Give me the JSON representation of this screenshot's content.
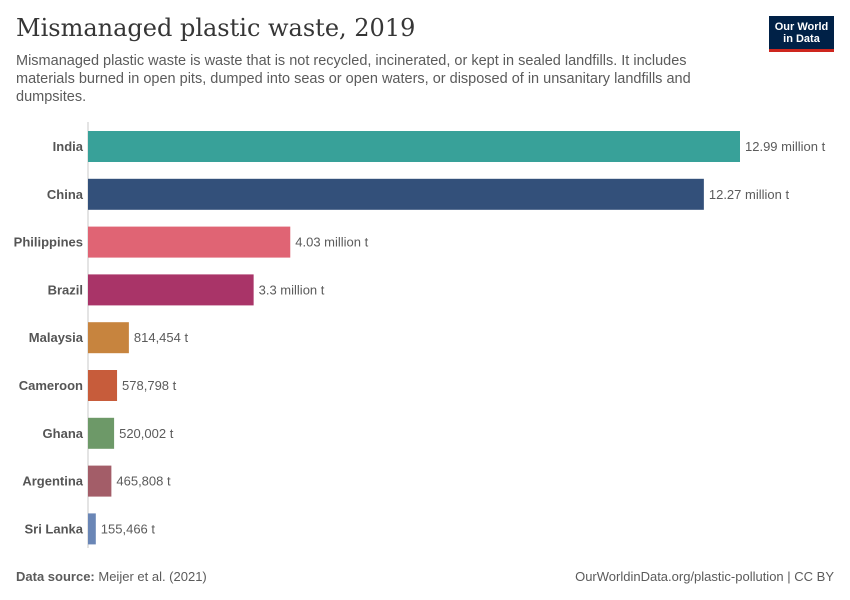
{
  "header": {
    "title": "Mismanaged plastic waste, 2019",
    "subtitle": "Mismanaged plastic waste is waste that is not recycled, incinerated, or kept in sealed landfills. It includes materials burned in open pits, dumped into seas or open waters, or disposed of in unsanitary landfills and dumpsites.",
    "logo_line1": "Our World",
    "logo_line2": "in Data"
  },
  "footer": {
    "source_label": "Data source:",
    "source_text": "Meijer et al. (2021)",
    "link_text": "OurWorldinData.org/plastic-pollution | CC BY"
  },
  "colors": {
    "logo_bg": "#002147",
    "logo_accent": "#ce261e"
  },
  "chart_data": {
    "type": "bar",
    "orientation": "horizontal",
    "title": "Mismanaged plastic waste, 2019",
    "xlabel": "",
    "ylabel": "",
    "unit": "tonnes",
    "xlim": [
      0,
      12990000
    ],
    "categories": [
      "India",
      "China",
      "Philippines",
      "Brazil",
      "Malaysia",
      "Cameroon",
      "Ghana",
      "Argentina",
      "Sri Lanka"
    ],
    "values": [
      12990000,
      12270000,
      4030000,
      3300000,
      814454,
      578798,
      520002,
      465808,
      155466
    ],
    "value_labels": [
      "12.99 million t",
      "12.27 million t",
      "4.03 million t",
      "3.3 million t",
      "814,454 t",
      "578,798 t",
      "520,002 t",
      "465,808 t",
      "155,466 t"
    ],
    "bar_colors": [
      "#38a199",
      "#33507a",
      "#e06474",
      "#a93468",
      "#c7843e",
      "#c75c3b",
      "#6d9968",
      "#a35d68",
      "#6a86b6"
    ]
  }
}
